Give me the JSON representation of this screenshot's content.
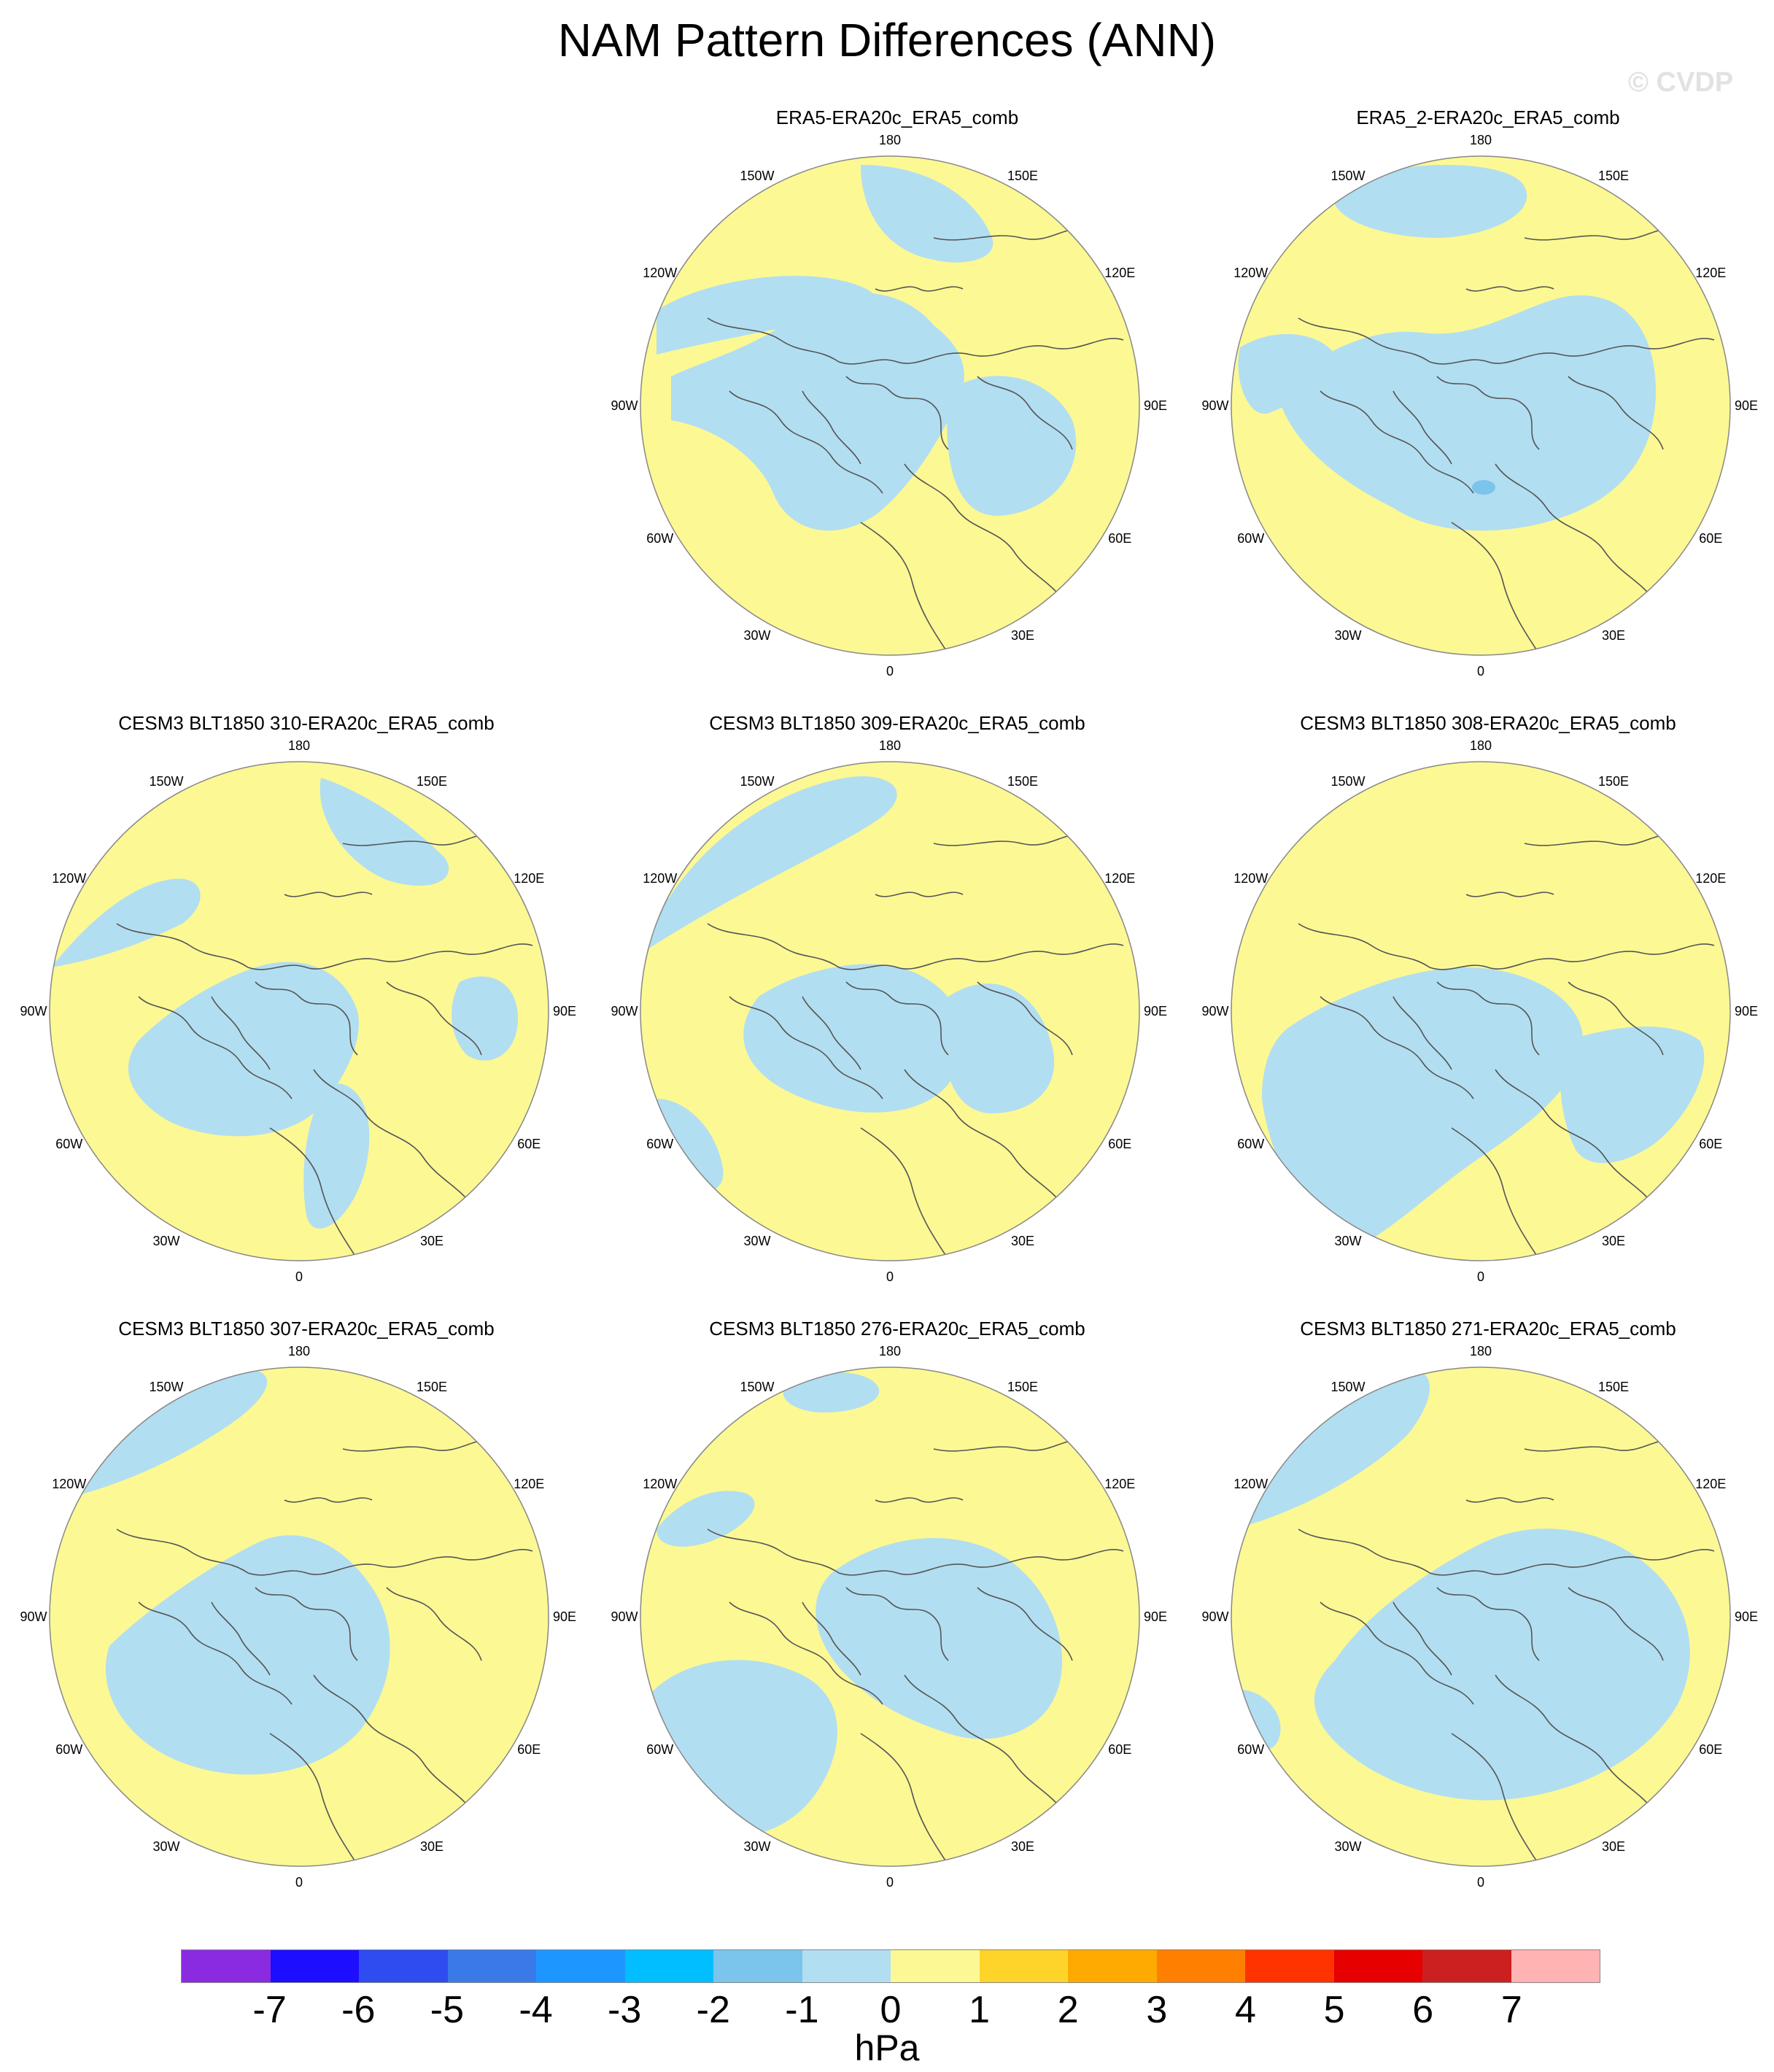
{
  "title": "NAM Pattern Differences (ANN)",
  "watermark": "© CVDP",
  "colors": {
    "negative_fill": "#b2def1",
    "positive_fill": "#fcf894",
    "strong_negative_fill": "#7bc4ec",
    "coast": "#555555",
    "border": "#888888"
  },
  "lon_labels": [
    "180",
    "150E",
    "120E",
    "90E",
    "60E",
    "30E",
    "0",
    "30W",
    "60W",
    "90W",
    "120W",
    "150W"
  ],
  "panels": [
    {
      "title": "ERA5-ERA20c_ERA5_comb"
    },
    {
      "title": "ERA5_2-ERA20c_ERA5_comb"
    },
    {
      "title": "CESM3 BLT1850 310-ERA20c_ERA5_comb"
    },
    {
      "title": "CESM3 BLT1850 309-ERA20c_ERA5_comb"
    },
    {
      "title": "CESM3 BLT1850 308-ERA20c_ERA5_comb"
    },
    {
      "title": "CESM3 BLT1850 307-ERA20c_ERA5_comb"
    },
    {
      "title": "CESM3 BLT1850 276-ERA20c_ERA5_comb"
    },
    {
      "title": "CESM3 BLT1850 271-ERA20c_ERA5_comb"
    }
  ],
  "colorbar": {
    "units": "hPa",
    "labels": [
      "-7",
      "-6",
      "-5",
      "-4",
      "-3",
      "-2",
      "-1",
      "0",
      "1",
      "2",
      "3",
      "4",
      "5",
      "6",
      "7"
    ],
    "colors": [
      "#8a2be2",
      "#1e0eff",
      "#2e4cf0",
      "#3a7ae8",
      "#1e96ff",
      "#00beff",
      "#7bc4ec",
      "#b2def1",
      "#fcf894",
      "#ffd42a",
      "#ffaa00",
      "#ff7f00",
      "#ff3300",
      "#e60000",
      "#cc1f1f",
      "#ffb3b3"
    ]
  }
}
